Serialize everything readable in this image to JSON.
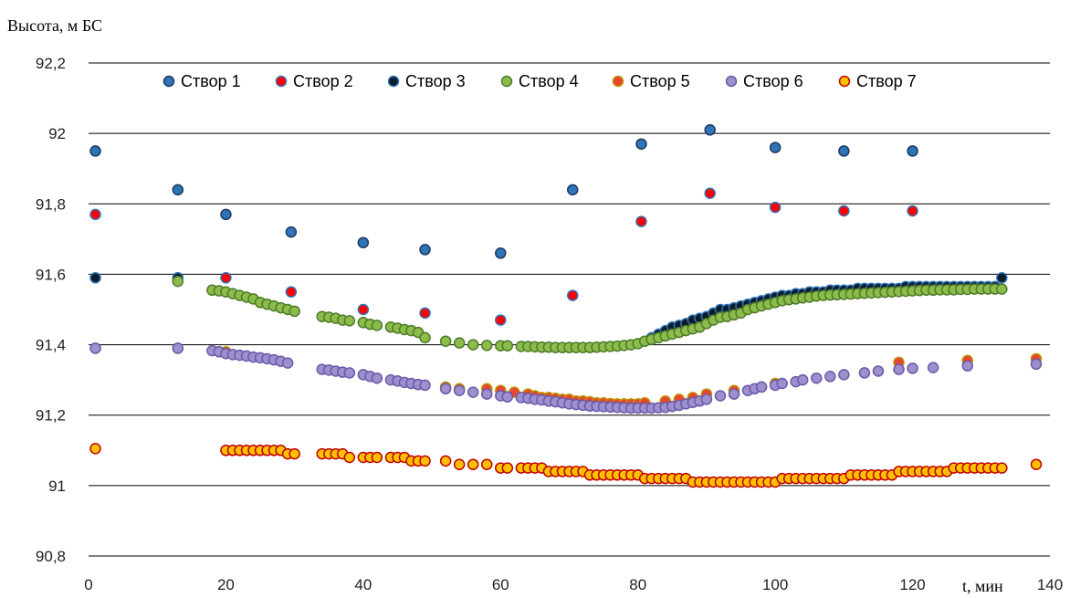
{
  "chart_data": {
    "type": "scatter",
    "ylabel": "Высота, м БС",
    "xlabel": "t, мин",
    "xlim": [
      0,
      140
    ],
    "ylim": [
      90.8,
      92.2
    ],
    "x_ticks": [
      0,
      20,
      40,
      60,
      80,
      100,
      120,
      140
    ],
    "y_ticks": [
      90.8,
      91,
      91.2,
      91.4,
      91.6,
      91.8,
      92,
      92.2
    ],
    "y_tick_labels": [
      "90,8",
      "91",
      "91,2",
      "91,4",
      "91,6",
      "91,8",
      "92",
      "92,2"
    ],
    "grid": "horizontal",
    "legend_position": "top",
    "series": [
      {
        "name": "Створ 1",
        "fill": "#2e75b6",
        "stroke": "#1f3864",
        "x": [
          1,
          13,
          20,
          29.5,
          40,
          49,
          60,
          70.5,
          80.5,
          90.5,
          100,
          110,
          120
        ],
        "y": [
          91.95,
          91.84,
          91.77,
          91.72,
          91.69,
          91.67,
          91.66,
          91.84,
          91.97,
          92.01,
          91.96,
          91.95,
          91.95
        ]
      },
      {
        "name": "Створ 2",
        "fill": "#ff0000",
        "stroke": "#2e75b6",
        "x": [
          1,
          13,
          20,
          29.5,
          40,
          49,
          60,
          70.5,
          80.5,
          90.5,
          100,
          110,
          120
        ],
        "y": [
          91.77,
          91.59,
          91.59,
          91.55,
          91.5,
          91.49,
          91.47,
          91.54,
          91.75,
          91.83,
          91.79,
          91.78,
          91.78
        ]
      },
      {
        "name": "Створ 3",
        "fill": "#0d1b2a",
        "stroke": "#2e75b6",
        "x": [
          1,
          13,
          82,
          83,
          84,
          85,
          86,
          87,
          88,
          89,
          90,
          91,
          92,
          93,
          94,
          95,
          96,
          97,
          98,
          99,
          100,
          101,
          102,
          103,
          104,
          105,
          106,
          107,
          108,
          109,
          110,
          111,
          112,
          113,
          114,
          115,
          116,
          117,
          118,
          119,
          120,
          121,
          122,
          123,
          124,
          125,
          126,
          127,
          128,
          129,
          130,
          131,
          132,
          133
        ],
        "y": [
          91.59,
          91.59,
          91.42,
          91.43,
          91.44,
          91.45,
          91.455,
          91.46,
          91.47,
          91.475,
          91.48,
          91.49,
          91.5,
          91.5,
          91.505,
          91.51,
          91.515,
          91.52,
          91.525,
          91.53,
          91.535,
          91.54,
          91.54,
          91.545,
          91.545,
          91.55,
          91.55,
          91.55,
          91.555,
          91.555,
          91.555,
          91.555,
          91.56,
          91.56,
          91.56,
          91.56,
          91.56,
          91.56,
          91.56,
          91.565,
          91.565,
          91.565,
          91.565,
          91.565,
          91.565,
          91.565,
          91.565,
          91.565,
          91.565,
          91.565,
          91.565,
          91.565,
          91.565,
          91.59
        ]
      },
      {
        "name": "Створ 4",
        "fill": "#8cbd4a",
        "stroke": "#4e7a2b",
        "x": [
          13,
          18,
          19,
          20,
          21,
          22,
          23,
          24,
          25,
          26,
          27,
          28,
          29,
          30,
          34,
          35,
          36,
          37,
          38,
          40,
          41,
          42,
          44,
          45,
          46,
          47,
          48,
          49,
          52,
          54,
          56,
          58,
          60,
          61,
          63,
          64,
          65,
          66,
          67,
          68,
          69,
          70,
          71,
          72,
          73,
          74,
          75,
          76,
          77,
          78,
          79,
          80,
          81,
          82,
          83,
          84,
          85,
          86,
          87,
          88,
          89,
          90,
          91,
          92,
          93,
          94,
          95,
          96,
          97,
          98,
          99,
          100,
          101,
          102,
          103,
          104,
          105,
          106,
          107,
          108,
          109,
          110,
          111,
          112,
          113,
          114,
          115,
          116,
          117,
          118,
          119,
          120,
          121,
          122,
          123,
          124,
          125,
          126,
          127,
          128,
          129,
          130,
          131,
          132,
          133
        ],
        "y": [
          91.58,
          91.555,
          91.553,
          91.55,
          91.545,
          91.54,
          91.535,
          91.53,
          91.52,
          91.515,
          91.51,
          91.505,
          91.5,
          91.495,
          91.48,
          91.478,
          91.475,
          91.47,
          91.468,
          91.463,
          91.458,
          91.455,
          91.45,
          91.447,
          91.443,
          91.44,
          91.435,
          91.42,
          91.41,
          91.405,
          91.4,
          91.398,
          91.397,
          91.397,
          91.395,
          91.395,
          91.394,
          91.393,
          91.393,
          91.392,
          91.392,
          91.392,
          91.392,
          91.392,
          91.392,
          91.393,
          91.394,
          91.395,
          91.396,
          91.398,
          91.4,
          91.403,
          91.41,
          91.415,
          91.42,
          91.425,
          91.43,
          91.435,
          91.44,
          91.445,
          91.45,
          91.46,
          91.47,
          91.478,
          91.48,
          91.485,
          91.49,
          91.5,
          91.505,
          91.51,
          91.515,
          91.52,
          91.525,
          91.528,
          91.53,
          91.533,
          91.535,
          91.538,
          91.54,
          91.541,
          91.542,
          91.543,
          91.544,
          91.545,
          91.546,
          91.547,
          91.548,
          91.549,
          91.55,
          91.551,
          91.552,
          91.553,
          91.554,
          91.555,
          91.555,
          91.556,
          91.556,
          91.556,
          91.557,
          91.557,
          91.558,
          91.558,
          91.558,
          91.558,
          91.558
        ]
      },
      {
        "name": "Створ 5",
        "fill": "#e8462e",
        "stroke": "#c09000",
        "x": [
          1,
          13,
          20,
          52,
          54,
          58,
          60,
          62,
          64,
          65,
          66,
          67,
          68,
          69,
          70,
          71,
          72,
          73,
          74,
          75,
          76,
          77,
          78,
          79,
          80,
          81,
          84,
          86,
          88,
          90,
          94,
          98,
          100,
          118,
          128,
          138
        ],
        "y": [
          91.39,
          91.39,
          91.38,
          91.28,
          91.275,
          91.275,
          91.27,
          91.265,
          91.26,
          91.255,
          91.25,
          91.25,
          91.248,
          91.245,
          91.245,
          91.24,
          91.24,
          91.238,
          91.235,
          91.235,
          91.233,
          91.232,
          91.232,
          91.232,
          91.232,
          91.235,
          91.24,
          91.245,
          91.25,
          91.26,
          91.27,
          91.28,
          91.29,
          91.35,
          91.355,
          91.36
        ]
      },
      {
        "name": "Створ 6",
        "fill": "#9e8fcf",
        "stroke": "#6b5aa8",
        "x": [
          1,
          13,
          18,
          19,
          20,
          21,
          22,
          23,
          24,
          25,
          26,
          27,
          28,
          29,
          34,
          35,
          36,
          37,
          38,
          40,
          41,
          42,
          44,
          45,
          46,
          47,
          48,
          49,
          52,
          54,
          56,
          58,
          60,
          61,
          63,
          64,
          65,
          66,
          67,
          68,
          69,
          70,
          71,
          72,
          73,
          74,
          75,
          76,
          77,
          78,
          79,
          80,
          81,
          82,
          83,
          84,
          85,
          86,
          87,
          88,
          89,
          90,
          92,
          94,
          96,
          97,
          98,
          100,
          101,
          103,
          104,
          106,
          108,
          110,
          113,
          115,
          118,
          120,
          123,
          128,
          138
        ],
        "y": [
          91.39,
          91.39,
          91.383,
          91.38,
          91.375,
          91.372,
          91.37,
          91.368,
          91.365,
          91.363,
          91.36,
          91.357,
          91.353,
          91.348,
          91.33,
          91.328,
          91.325,
          91.322,
          91.32,
          91.315,
          91.31,
          91.305,
          91.3,
          91.297,
          91.293,
          91.29,
          91.287,
          91.285,
          91.275,
          91.27,
          91.265,
          91.26,
          91.255,
          91.252,
          91.25,
          91.248,
          91.245,
          91.243,
          91.24,
          91.238,
          91.235,
          91.232,
          91.23,
          91.228,
          91.226,
          91.225,
          91.224,
          91.223,
          91.222,
          91.221,
          91.22,
          91.22,
          91.22,
          91.22,
          91.221,
          91.222,
          91.225,
          91.228,
          91.232,
          91.236,
          91.24,
          91.245,
          91.255,
          91.26,
          91.27,
          91.275,
          91.28,
          91.285,
          91.29,
          91.295,
          91.3,
          91.305,
          91.31,
          91.315,
          91.32,
          91.325,
          91.33,
          91.333,
          91.335,
          91.34,
          91.345
        ]
      },
      {
        "name": "Створ 7",
        "fill": "#ffc000",
        "stroke": "#c00000",
        "x": [
          1,
          20,
          21,
          22,
          23,
          24,
          25,
          26,
          27,
          28,
          29,
          30,
          34,
          35,
          36,
          37,
          38,
          40,
          41,
          42,
          44,
          45,
          46,
          47,
          48,
          49,
          52,
          54,
          56,
          58,
          60,
          61,
          63,
          64,
          65,
          66,
          67,
          68,
          69,
          70,
          71,
          72,
          73,
          74,
          75,
          76,
          77,
          78,
          79,
          80,
          81,
          82,
          83,
          84,
          85,
          86,
          87,
          88,
          89,
          90,
          91,
          92,
          93,
          94,
          95,
          96,
          97,
          98,
          99,
          100,
          101,
          102,
          103,
          104,
          105,
          106,
          107,
          108,
          109,
          110,
          111,
          112,
          113,
          114,
          115,
          116,
          117,
          118,
          119,
          120,
          121,
          122,
          123,
          124,
          125,
          126,
          127,
          128,
          129,
          130,
          131,
          132,
          133,
          138
        ],
        "y": [
          91.105,
          91.1,
          91.1,
          91.1,
          91.1,
          91.1,
          91.1,
          91.1,
          91.1,
          91.1,
          91.09,
          91.09,
          91.09,
          91.09,
          91.09,
          91.09,
          91.08,
          91.08,
          91.08,
          91.08,
          91.08,
          91.08,
          91.08,
          91.07,
          91.07,
          91.07,
          91.07,
          91.06,
          91.06,
          91.06,
          91.05,
          91.05,
          91.05,
          91.05,
          91.05,
          91.05,
          91.04,
          91.04,
          91.04,
          91.04,
          91.04,
          91.04,
          91.03,
          91.03,
          91.03,
          91.03,
          91.03,
          91.03,
          91.03,
          91.03,
          91.02,
          91.02,
          91.02,
          91.02,
          91.02,
          91.02,
          91.02,
          91.01,
          91.01,
          91.01,
          91.01,
          91.01,
          91.01,
          91.01,
          91.01,
          91.01,
          91.01,
          91.01,
          91.01,
          91.01,
          91.02,
          91.02,
          91.02,
          91.02,
          91.02,
          91.02,
          91.02,
          91.02,
          91.02,
          91.02,
          91.03,
          91.03,
          91.03,
          91.03,
          91.03,
          91.03,
          91.03,
          91.04,
          91.04,
          91.04,
          91.04,
          91.04,
          91.04,
          91.04,
          91.04,
          91.05,
          91.05,
          91.05,
          91.05,
          91.05,
          91.05,
          91.05,
          91.05,
          91.06
        ]
      }
    ]
  }
}
